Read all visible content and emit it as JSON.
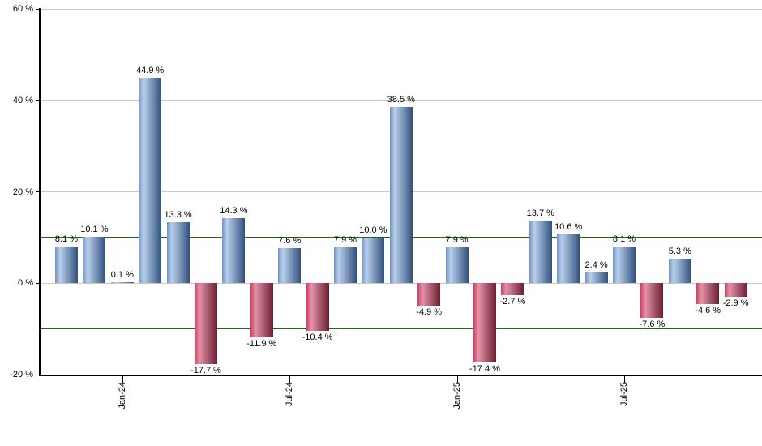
{
  "chart_data": {
    "type": "bar",
    "ylim": [
      -20,
      60
    ],
    "grid": true,
    "legend": false,
    "y_ticks": [
      "60 %",
      "40 %",
      "20 %",
      "0 %",
      "-20 %"
    ],
    "y_tick_values": [
      60,
      40,
      20,
      0,
      -20
    ],
    "reference_lines": [
      10,
      -10
    ],
    "x_ticks": [
      {
        "label": "Jan-24",
        "bar_index": 2
      },
      {
        "label": "Jul-24",
        "bar_index": 8
      },
      {
        "label": "Jan-25",
        "bar_index": 14
      },
      {
        "label": "Jul-25",
        "bar_index": 20
      }
    ],
    "values": [
      8.1,
      10.1,
      0.1,
      44.9,
      13.3,
      -17.7,
      14.3,
      -11.9,
      7.6,
      -10.4,
      7.9,
      10.0,
      38.5,
      -4.9,
      7.9,
      -17.4,
      -2.7,
      13.7,
      10.6,
      2.4,
      8.1,
      -7.6,
      5.3,
      -4.6,
      -2.9
    ],
    "bar_labels": [
      "8.1 %",
      "10.1 %",
      "0.1 %",
      "44.9 %",
      "13.3 %",
      "-17.7 %",
      "14.3 %",
      "-11.9 %",
      "7.6 %",
      "-10.4 %",
      "7.9 %",
      "10.0 %",
      "38.5 %",
      "-4.9 %",
      "7.9 %",
      "-17.4 %",
      "-2.7 %",
      "13.7 %",
      "10.6 %",
      "2.4 %",
      "8.1 %",
      "-7.6 %",
      "5.3 %",
      "-4.6 %",
      "-2.9 %"
    ],
    "colors": {
      "positive_bar_gradient": [
        "#7492c4",
        "#b9cfec",
        "#31517e"
      ],
      "negative_bar_gradient": [
        "#d23b60",
        "#e293a7",
        "#6e1d32"
      ],
      "reference_line": "#0b760b",
      "gridline": "#c8c8c8",
      "axis": "#000000",
      "label_text": "#000000"
    }
  }
}
